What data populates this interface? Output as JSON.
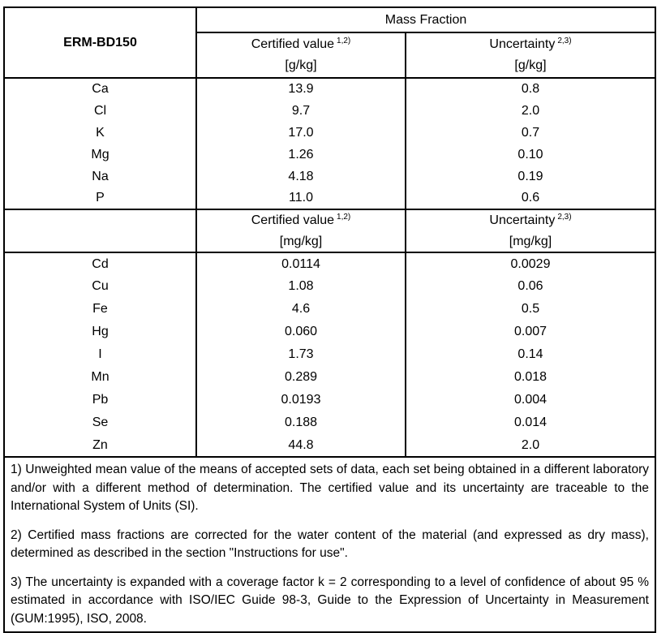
{
  "document": {
    "material_id": "ERM-BD150",
    "mass_fraction_header": "Mass Fraction",
    "gkg_header": {
      "certified_label": "Certified value",
      "certified_sup": "1,2)",
      "certified_unit": "[g/kg]",
      "uncertainty_label": "Uncertainty",
      "uncertainty_sup": "2,3)",
      "uncertainty_unit": "[g/kg]"
    },
    "mgkg_header": {
      "certified_label": "Certified value",
      "certified_sup": "1,2)",
      "certified_unit": "[mg/kg]",
      "uncertainty_label": "Uncertainty",
      "uncertainty_sup": "2,3)",
      "uncertainty_unit": "[mg/kg]"
    },
    "gkg_rows": [
      {
        "element": "Ca",
        "certified": "13.9",
        "uncertainty": "0.8"
      },
      {
        "element": "Cl",
        "certified": "9.7",
        "uncertainty": "2.0"
      },
      {
        "element": "K",
        "certified": "17.0",
        "uncertainty": "0.7"
      },
      {
        "element": "Mg",
        "certified": "1.26",
        "uncertainty": "0.10"
      },
      {
        "element": "Na",
        "certified": "4.18",
        "uncertainty": "0.19"
      },
      {
        "element": "P",
        "certified": "11.0",
        "uncertainty": "0.6"
      }
    ],
    "mgkg_rows": [
      {
        "element": "Cd",
        "certified": "0.0114",
        "uncertainty": "0.0029"
      },
      {
        "element": "Cu",
        "certified": "1.08",
        "uncertainty": "0.06"
      },
      {
        "element": "Fe",
        "certified": "4.6",
        "uncertainty": "0.5"
      },
      {
        "element": "Hg",
        "certified": "0.060",
        "uncertainty": "0.007"
      },
      {
        "element": "I",
        "certified": "1.73",
        "uncertainty": "0.14"
      },
      {
        "element": "Mn",
        "certified": "0.289",
        "uncertainty": "0.018"
      },
      {
        "element": "Pb",
        "certified": "0.0193",
        "uncertainty": "0.004"
      },
      {
        "element": "Se",
        "certified": "0.188",
        "uncertainty": "0.014"
      },
      {
        "element": "Zn",
        "certified": "44.8",
        "uncertainty": "2.0"
      }
    ],
    "footnotes": [
      "1) Unweighted mean value of the means of accepted sets of data, each set being obtained in a different laboratory and/or with a different method of determination. The certified value and its uncertainty are traceable to the International System of Units (SI).",
      "2) Certified mass fractions are corrected for the water content of the material (and expressed as dry mass), determined as described in the section \"Instructions for use\".",
      "3) The uncertainty is  expanded with a coverage factor k = 2 corresponding to a level of confidence of about 95 % estimated in accordance with ISO/IEC Guide 98-3, Guide to the Expression of Uncertainty in Measurement (GUM:1995), ISO, 2008."
    ]
  }
}
